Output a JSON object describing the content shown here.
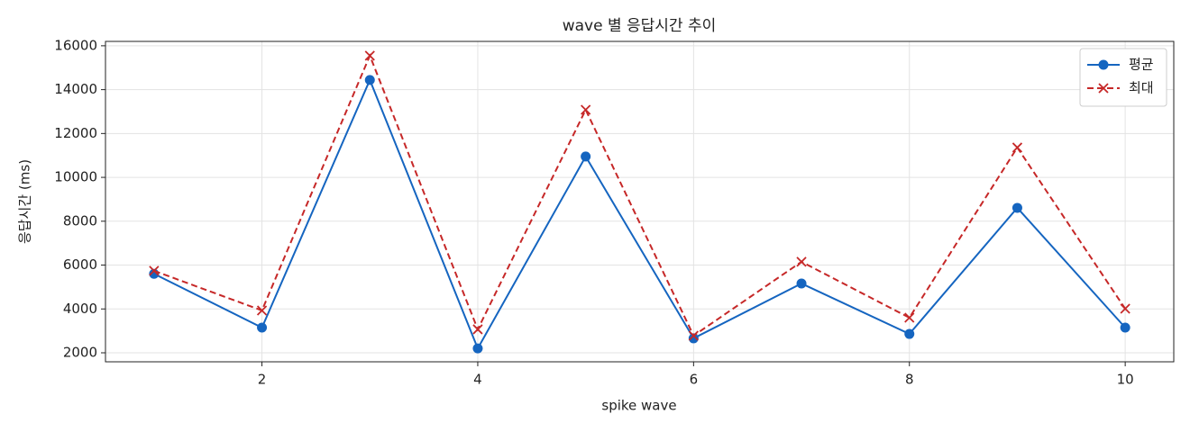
{
  "chart_data": {
    "type": "line",
    "title": "wave 별 응답시간 추이",
    "x_label": "spike wave",
    "y_label": "응답시간 (ms)",
    "x": [
      1,
      2,
      3,
      4,
      5,
      6,
      7,
      8,
      9,
      10
    ],
    "series": [
      {
        "name": "평균",
        "color": "#1565c0",
        "style": "solid",
        "marker": "circle",
        "values": [
          5600,
          3150,
          14440,
          2200,
          10950,
          2660,
          5160,
          2860,
          8610,
          3150
        ]
      },
      {
        "name": "최대",
        "color": "#c62828",
        "style": "dashed",
        "marker": "x",
        "values": [
          5740,
          3930,
          15550,
          3070,
          13080,
          2780,
          6150,
          3600,
          11360,
          4010
        ]
      }
    ],
    "xlim": [
      0.55,
      10.45
    ],
    "ylim": [
      1590,
      16200
    ],
    "xticks": [
      2,
      4,
      6,
      8,
      10
    ],
    "yticks": [
      2000,
      4000,
      6000,
      8000,
      10000,
      12000,
      14000,
      16000
    ],
    "grid": true,
    "legend": "upper-right"
  }
}
